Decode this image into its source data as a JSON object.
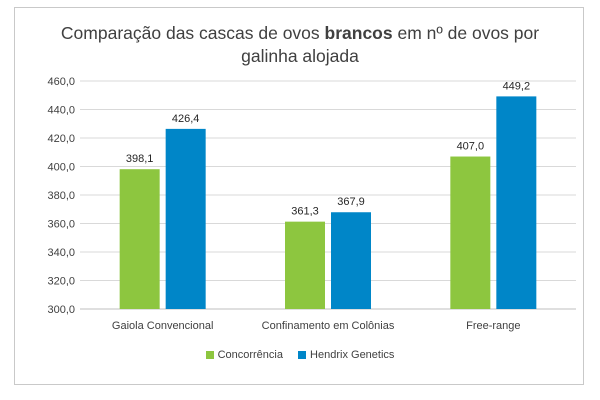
{
  "chart_data": {
    "type": "bar",
    "title_parts": {
      "pre": "Comparação das cascas de ovos ",
      "bold": "brancos",
      "post": " em nº de ovos por",
      "line2": "galinha alojada"
    },
    "categories": [
      "Gaiola Convencional",
      "Confinamento em Colônias",
      "Free-range"
    ],
    "series": [
      {
        "name": "Concorrência",
        "values": [
          398.1,
          361.3,
          407.0
        ],
        "labels": [
          "398,1",
          "361,3",
          "407,0"
        ],
        "color": "#8dc63f"
      },
      {
        "name": "Hendrix Genetics",
        "values": [
          426.4,
          367.9,
          449.2
        ],
        "labels": [
          "426,4",
          "367,9",
          "449,2"
        ],
        "color": "#0086c8"
      }
    ],
    "ylim": [
      300,
      460
    ],
    "yticks": [
      "300,0",
      "320,0",
      "340,0",
      "360,0",
      "380,0",
      "400,0",
      "420,0",
      "440,0",
      "460,0"
    ],
    "ytick_values": [
      300,
      320,
      340,
      360,
      380,
      400,
      420,
      440,
      460
    ],
    "grid": true,
    "legend_position": "bottom"
  }
}
